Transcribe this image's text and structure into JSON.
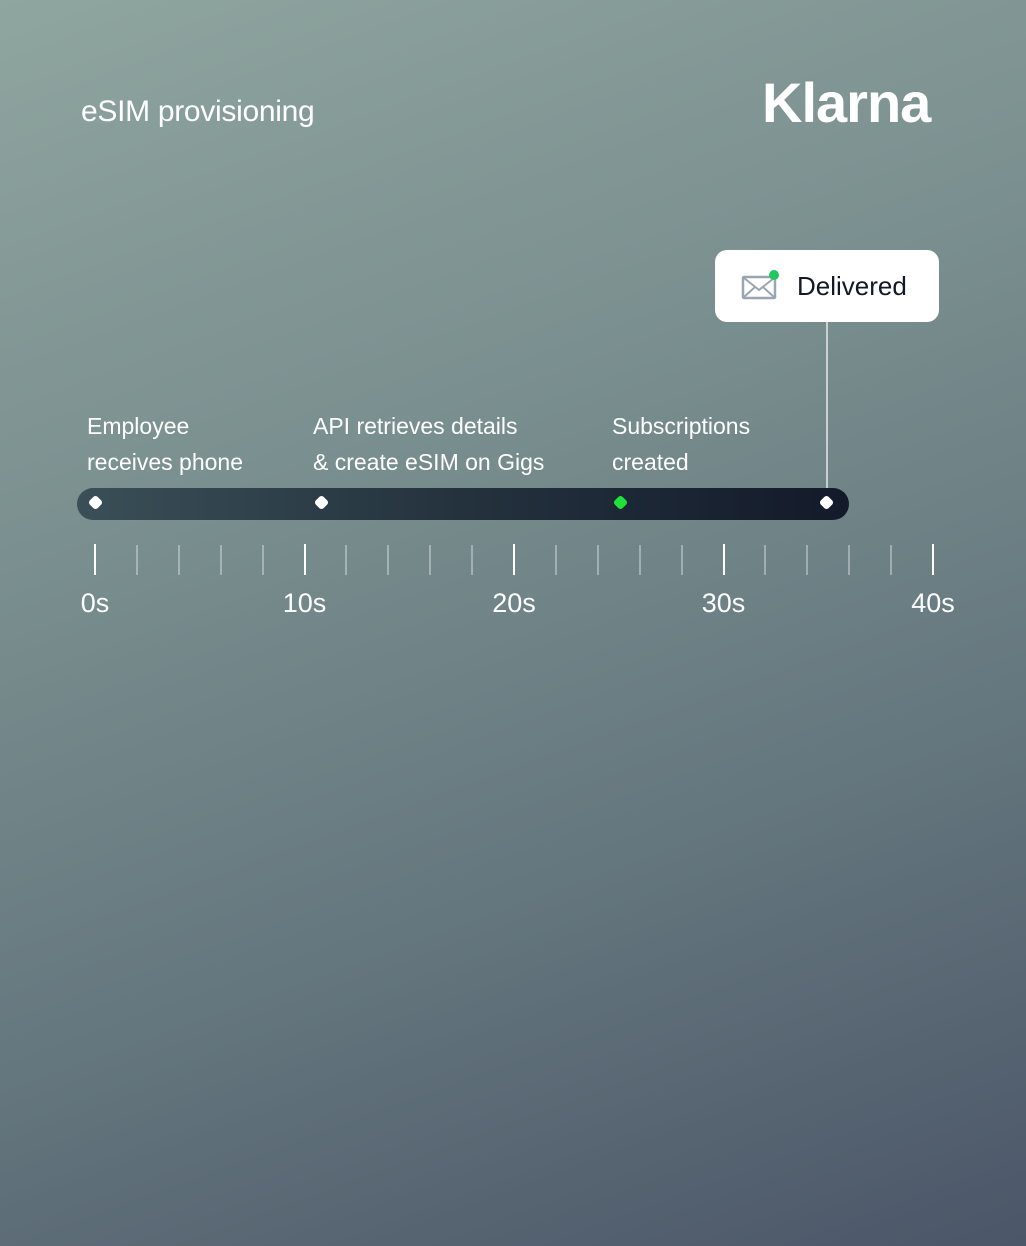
{
  "header": {
    "title": "eSIM provisioning",
    "logo": "Klarna"
  },
  "callout": {
    "label": "Delivered",
    "icon": "envelope-icon",
    "status_color": "#22c55e"
  },
  "chart_data": {
    "type": "timeline",
    "axis": {
      "min": 0,
      "max": 40,
      "major_step": 10,
      "minor_step": 2,
      "unit": "s",
      "tick_labels": [
        "0s",
        "10s",
        "20s",
        "30s",
        "40s"
      ]
    },
    "events": [
      {
        "t": 0,
        "label_line1": "Employee",
        "label_line2": "receives phone",
        "color": "#ffffff"
      },
      {
        "t": 10.8,
        "label_line1": "API retrieves details",
        "label_line2": "& create eSIM on Gigs",
        "color": "#ffffff"
      },
      {
        "t": 25.1,
        "label_line1": "Subscriptions",
        "label_line2": "created",
        "color": "#22e03a"
      },
      {
        "t": 34.9,
        "label_line1": "",
        "label_line2": "",
        "color": "#ffffff"
      }
    ]
  }
}
